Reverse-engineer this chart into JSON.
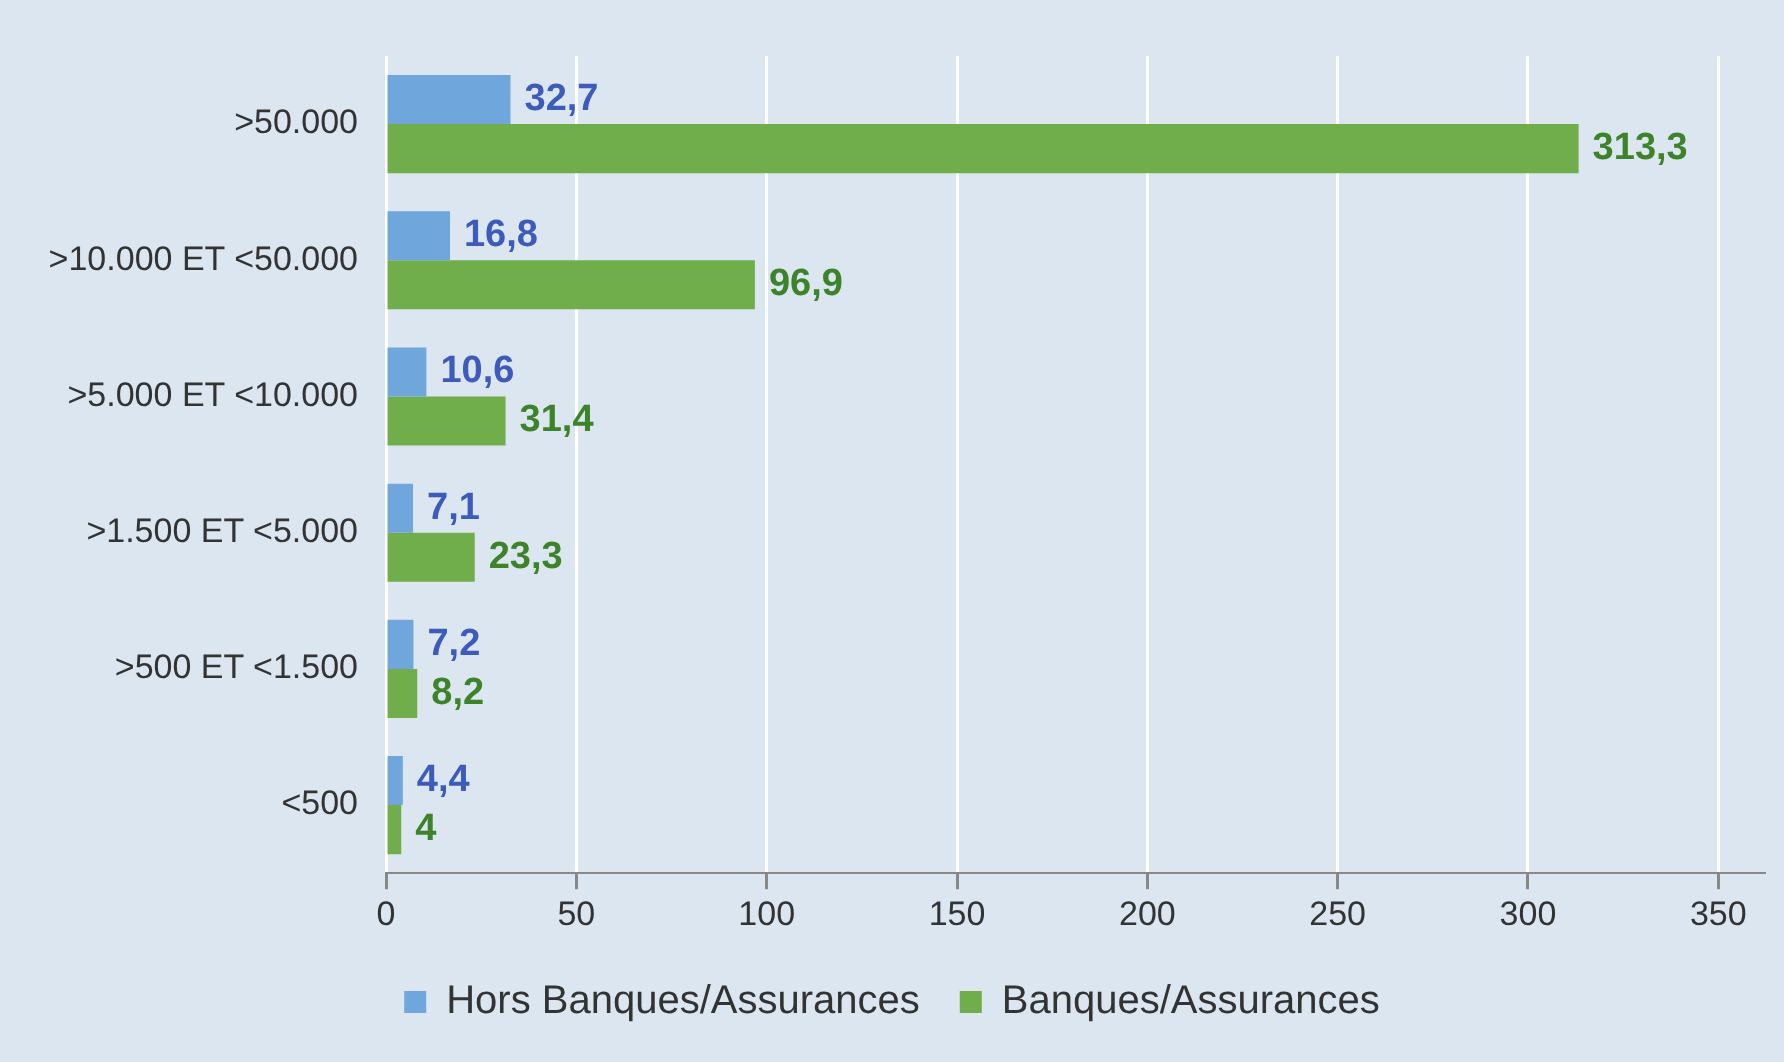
{
  "chart_data": {
    "type": "bar",
    "orientation": "horizontal",
    "categories": [
      ">50.000",
      ">10.000 ET <50.000",
      ">5.000 ET <10.000",
      ">1.500 ET <5.000",
      ">500 ET <1.500",
      "<500"
    ],
    "series": [
      {
        "name": "Hors Banques/Assurances",
        "color": "#6fa6dc",
        "values": [
          32.7,
          16.8,
          10.6,
          7.1,
          7.2,
          4.4
        ],
        "value_labels": [
          "32,7",
          "16,8",
          "10,6",
          "7,1",
          "7,2",
          "4,4"
        ]
      },
      {
        "name": "Banques/Assurances",
        "color": "#6fae4a",
        "values": [
          313.3,
          96.9,
          31.4,
          23.3,
          8.2,
          4
        ],
        "value_labels": [
          "313,3",
          "96,9",
          "31,4",
          "23,3",
          "8,2",
          "4"
        ]
      }
    ],
    "xlim": [
      0,
      362
    ],
    "xticks": [
      0,
      50,
      100,
      150,
      200,
      250,
      300,
      350
    ],
    "grid": "x",
    "legend": "bottom"
  }
}
